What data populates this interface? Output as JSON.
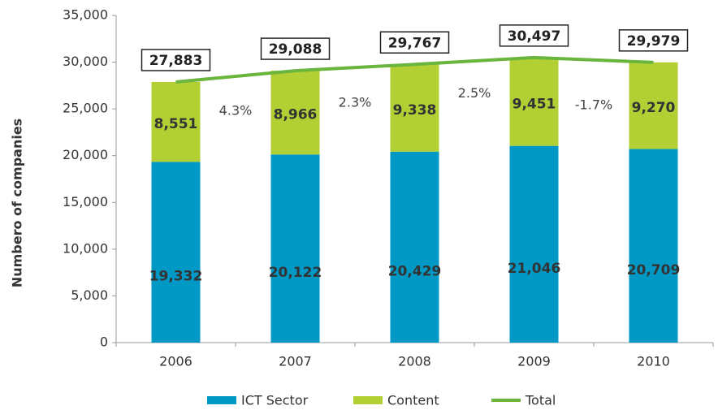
{
  "chart_data": {
    "type": "stacked_bar_line",
    "y_axis_label": "Numbero of companies",
    "categories": [
      "2006",
      "2007",
      "2008",
      "2009",
      "2010"
    ],
    "series": [
      {
        "name": "ICT Sector",
        "color": "#0099c6",
        "values": [
          19332,
          20122,
          20429,
          21046,
          20709
        ],
        "value_labels": [
          "19,332",
          "20,122",
          "20,429",
          "21,046",
          "20,709"
        ]
      },
      {
        "name": "Content",
        "color": "#b2cf34",
        "values": [
          8551,
          8966,
          9338,
          9451,
          9270
        ],
        "value_labels": [
          "8,551",
          "8,966",
          "9,338",
          "9,451",
          "9,270"
        ]
      },
      {
        "name": "Total",
        "color": "#6ab53e",
        "type": "line",
        "values": [
          27883,
          29088,
          29767,
          30497,
          29979
        ],
        "value_labels": [
          "27,883",
          "29,088",
          "29,767",
          "30,497",
          "29,979"
        ]
      }
    ],
    "annotations": [
      "4.3%",
      "2.3%",
      "2.5%",
      "-1.7%"
    ],
    "ylim": [
      0,
      35000
    ],
    "yticks": [
      {
        "value": 0,
        "label": "0"
      },
      {
        "value": 5000,
        "label": "5,000"
      },
      {
        "value": 10000,
        "label": "10,000"
      },
      {
        "value": 15000,
        "label": "15,000"
      },
      {
        "value": 20000,
        "label": "20,000"
      },
      {
        "value": 25000,
        "label": "25,000"
      },
      {
        "value": 30000,
        "label": "30,000"
      },
      {
        "value": 35000,
        "label": "35,000"
      }
    ]
  }
}
